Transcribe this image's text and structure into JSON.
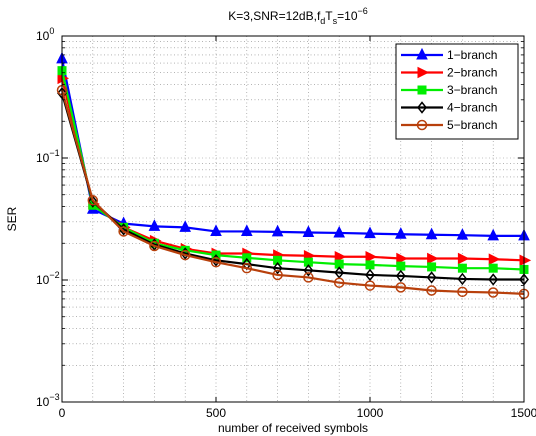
{
  "chart_data": {
    "type": "line",
    "title": "K=3,SNR=12dB,f",
    "title_parts": {
      "main": "K=3,SNR=12dB,f",
      "sub1": "d",
      "mid": "T",
      "sub2": "s",
      "eq": "=10",
      "sup": "−6"
    },
    "xlabel": "number of received symbols",
    "ylabel": "SER",
    "xlim": [
      0,
      1500
    ],
    "ylim": [
      0.001,
      1
    ],
    "yscale": "log",
    "grid": true,
    "legend_position": "top-right",
    "x_ticks": [
      "0",
      "500",
      "1000",
      "1500"
    ],
    "y_ticks": [
      {
        "base": "10",
        "exp": "0"
      },
      {
        "base": "10",
        "exp": "−1"
      },
      {
        "base": "10",
        "exp": "−2"
      },
      {
        "base": "10",
        "exp": "−3"
      }
    ],
    "x": [
      0,
      100,
      200,
      300,
      400,
      500,
      600,
      700,
      800,
      900,
      1000,
      1100,
      1200,
      1300,
      1400,
      1500
    ],
    "series": [
      {
        "name": "1−branch",
        "color": "#0000ff",
        "marker": "triangle-up",
        "values": [
          0.65,
          0.038,
          0.029,
          0.0275,
          0.027,
          0.025,
          0.025,
          0.0248,
          0.0245,
          0.0243,
          0.024,
          0.0237,
          0.0235,
          0.0233,
          0.023,
          0.023
        ]
      },
      {
        "name": "2−branch",
        "color": "#ff0000",
        "marker": "triangle-right",
        "values": [
          0.45,
          0.042,
          0.027,
          0.021,
          0.018,
          0.0165,
          0.0165,
          0.016,
          0.0158,
          0.0155,
          0.0155,
          0.015,
          0.015,
          0.015,
          0.0148,
          0.0145
        ]
      },
      {
        "name": "3−branch",
        "color": "#00ee00",
        "marker": "square",
        "values": [
          0.52,
          0.041,
          0.027,
          0.02,
          0.0175,
          0.016,
          0.0152,
          0.0145,
          0.014,
          0.0135,
          0.0133,
          0.013,
          0.0128,
          0.0125,
          0.0125,
          0.0122
        ]
      },
      {
        "name": "4−branch",
        "color": "#000000",
        "marker": "diamond",
        "values": [
          0.34,
          0.044,
          0.026,
          0.0195,
          0.0165,
          0.0145,
          0.0135,
          0.0125,
          0.012,
          0.0115,
          0.011,
          0.0108,
          0.0105,
          0.0102,
          0.0101,
          0.0101
        ]
      },
      {
        "name": "5−branch",
        "color": "#b8400c",
        "marker": "circle",
        "values": [
          0.36,
          0.045,
          0.025,
          0.019,
          0.016,
          0.014,
          0.0125,
          0.011,
          0.0105,
          0.0095,
          0.009,
          0.0087,
          0.0082,
          0.008,
          0.0079,
          0.0077
        ]
      }
    ]
  }
}
